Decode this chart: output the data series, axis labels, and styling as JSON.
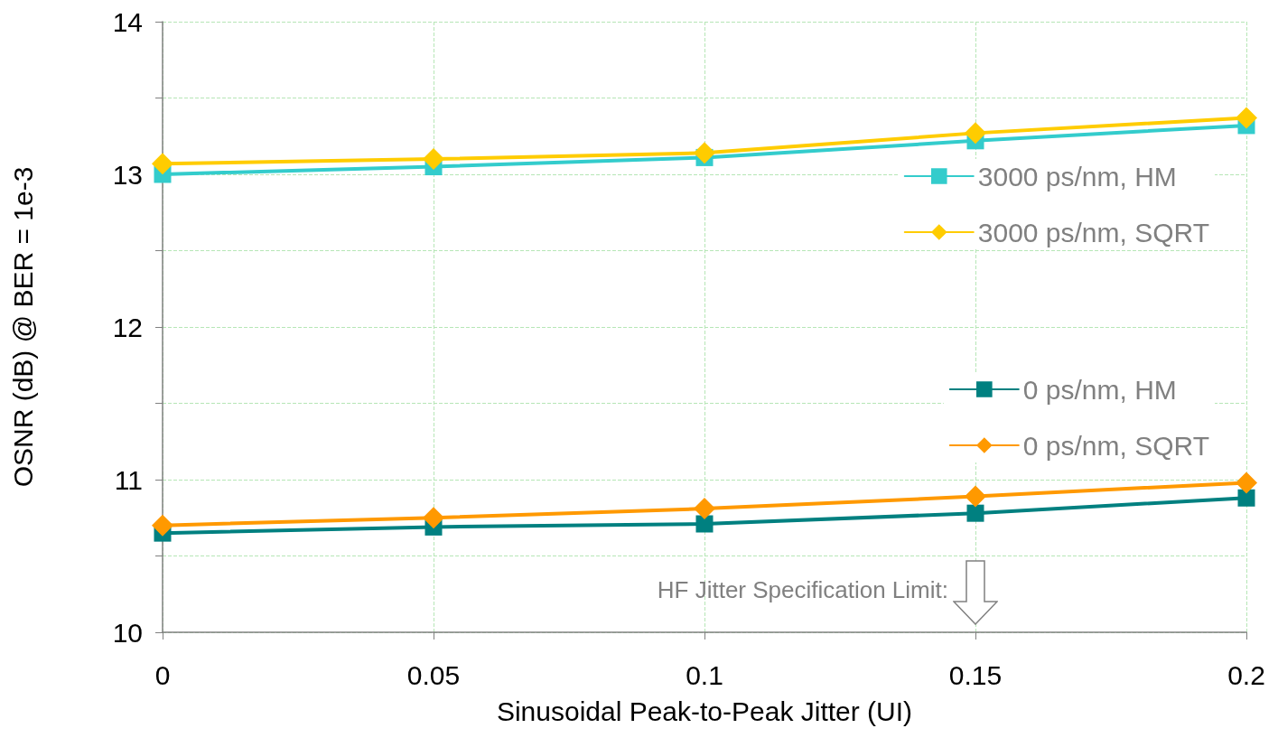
{
  "chart_data": {
    "type": "line",
    "xlabel": "Sinusoidal Peak-to-Peak Jitter (UI)",
    "ylabel": "OSNR (dB) @ BER = 1e-3",
    "x": [
      0,
      0.05,
      0.1,
      0.15,
      0.2
    ],
    "xlim": [
      0,
      0.2
    ],
    "xticks": [
      0,
      0.05,
      0.1,
      0.15,
      0.2
    ],
    "ylim": [
      10,
      14
    ],
    "yticks": [
      10,
      {
        "value": 10.5,
        "label": null
      },
      11,
      {
        "value": 11.5,
        "label": null
      },
      12,
      {
        "value": 12.5,
        "label": null
      },
      13,
      {
        "value": 13.5,
        "label": null
      },
      14
    ],
    "grid": true,
    "legend": "right",
    "line_style": "solid",
    "series": [
      {
        "name": "3000 ps/nm, HM",
        "color": "#33cccc",
        "marker": "square",
        "values": [
          13.0,
          13.05,
          13.11,
          13.22,
          13.32
        ]
      },
      {
        "name": "3000 ps/nm, SQRT",
        "color": "#ffcc00",
        "marker": "diamond",
        "values": [
          13.07,
          13.1,
          13.14,
          13.27,
          13.37
        ]
      },
      {
        "name": "0 ps/nm, HM",
        "color": "#008080",
        "marker": "square",
        "values": [
          10.65,
          10.69,
          10.71,
          10.78,
          10.88
        ]
      },
      {
        "name": "0 ps/nm, SQRT",
        "color": "#ff9900",
        "marker": "diamond",
        "values": [
          10.7,
          10.75,
          10.81,
          10.89,
          10.98
        ]
      }
    ],
    "annotations": [
      "HF Jitter Specification Limit:"
    ]
  }
}
